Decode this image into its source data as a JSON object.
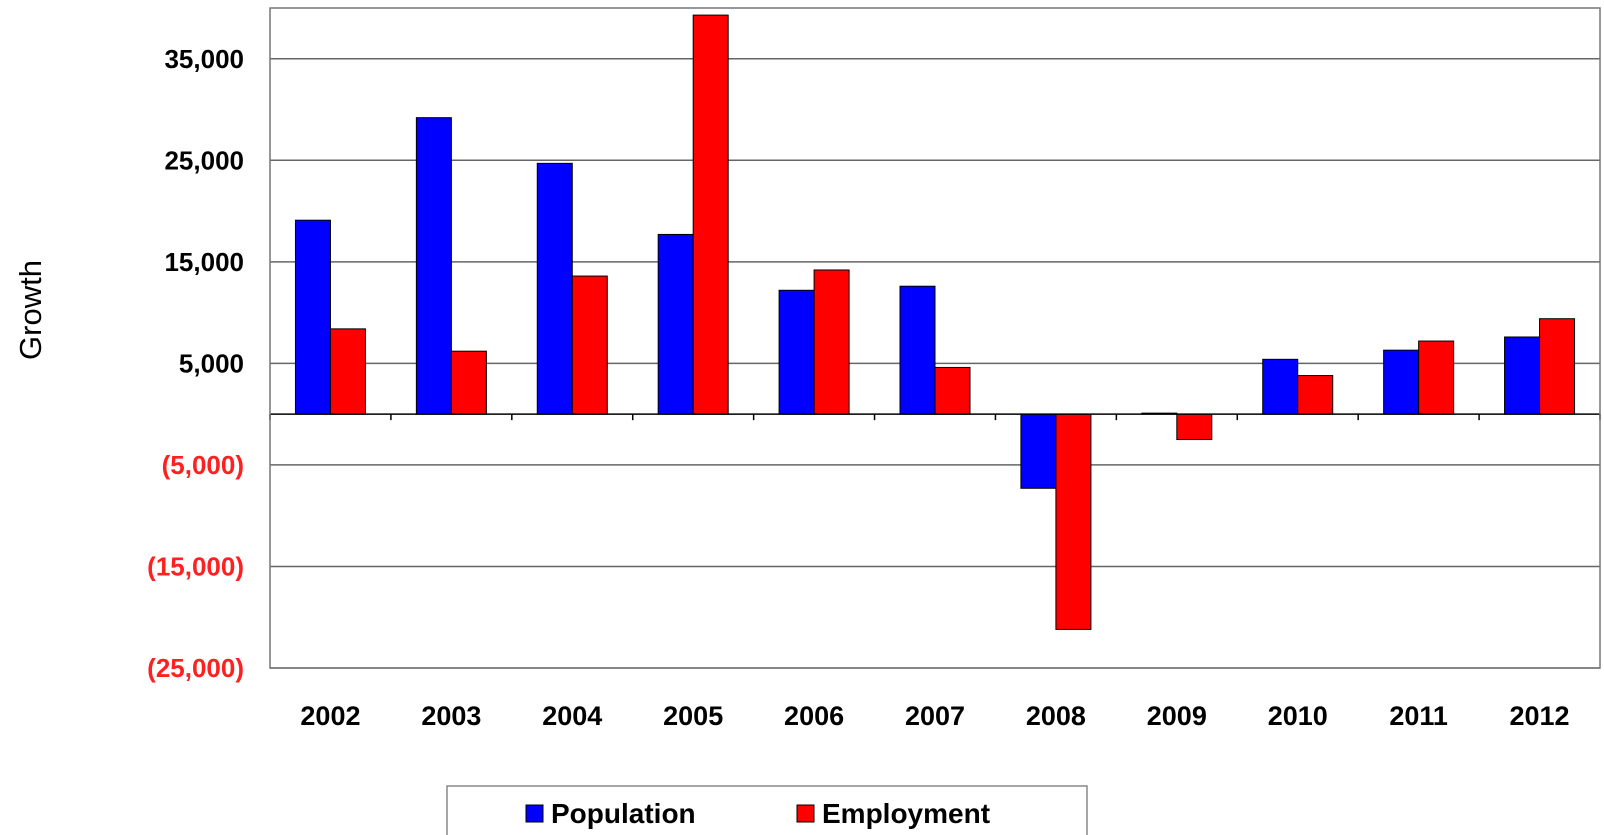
{
  "chart_data": {
    "type": "bar",
    "title": "",
    "xlabel": "",
    "ylabel": "Growth",
    "ylim": [
      -25000,
      40000
    ],
    "grid": true,
    "legend_position": "bottom-center",
    "categories": [
      "2002",
      "2003",
      "2004",
      "2005",
      "2006",
      "2007",
      "2008",
      "2009",
      "2010",
      "2011",
      "2012"
    ],
    "yticks": [
      {
        "value": 35000,
        "label": "35,000",
        "color": "#000000"
      },
      {
        "value": 25000,
        "label": "25,000",
        "color": "#000000"
      },
      {
        "value": 15000,
        "label": "15,000",
        "color": "#000000"
      },
      {
        "value": 5000,
        "label": "5,000",
        "color": "#000000"
      },
      {
        "value": -5000,
        "label": "(5,000)",
        "color": "#ff2020"
      },
      {
        "value": -15000,
        "label": "(15,000)",
        "color": "#ff2020"
      },
      {
        "value": -25000,
        "label": "(25,000)",
        "color": "#ff2020"
      }
    ],
    "series": [
      {
        "name": "Population",
        "color": "#0000ff",
        "values": [
          19100,
          29200,
          24700,
          17700,
          12200,
          12600,
          -7300,
          100,
          5400,
          6300,
          7600
        ]
      },
      {
        "name": "Employment",
        "color": "#ff0000",
        "values": [
          8400,
          6200,
          13600,
          39300,
          14200,
          4600,
          -21200,
          -2500,
          3800,
          7200,
          9400
        ]
      }
    ]
  }
}
